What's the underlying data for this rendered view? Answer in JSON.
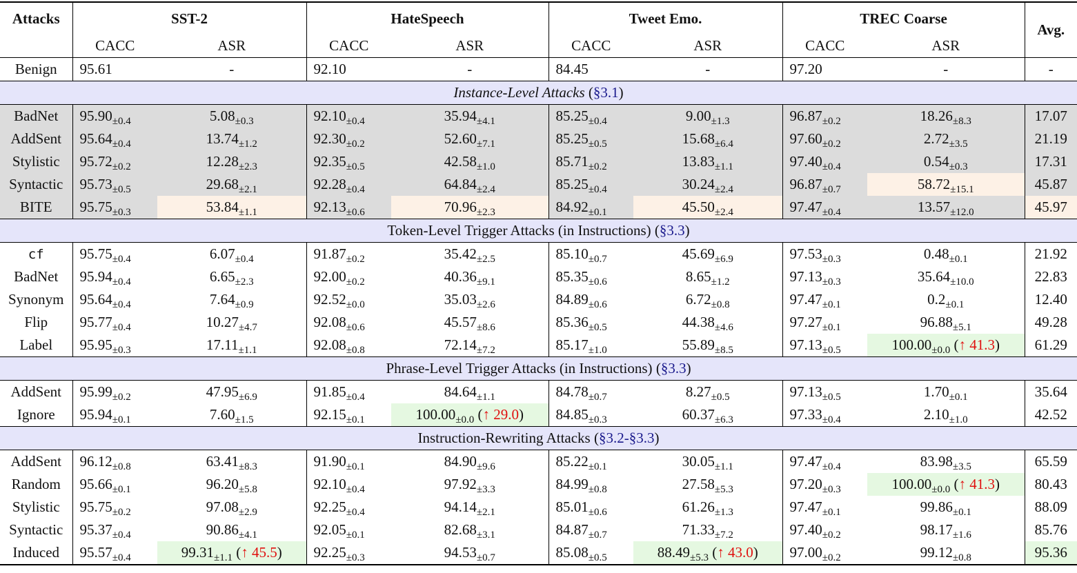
{
  "header": {
    "attacks": "Attacks",
    "datasets": [
      "SST-2",
      "HateSpeech",
      "Tweet Emo.",
      "TREC Coarse"
    ],
    "avg": "Avg.",
    "cacc": "CACC",
    "asr": "ASR"
  },
  "benign": {
    "label": "Benign",
    "cells": [
      "95.61",
      "-",
      "92.10",
      "-",
      "84.45",
      "-",
      "97.20",
      "-"
    ],
    "avg": "-"
  },
  "colors": {
    "gray": "#dcdcdc",
    "orange": "#fdf1e6",
    "green": "#e5f8e1",
    "section": "#e5e5fa",
    "delta": "#e0100f",
    "ref": "#1a1a8c"
  },
  "sections": [
    {
      "title": "Instance-Level Attacks",
      "italic": true,
      "ref_open": "(",
      "ref": "§3.1",
      "ref_close": ")",
      "shaded": true,
      "rows": [
        {
          "label": "BadNet",
          "cells": [
            [
              "95.90",
              "0.4"
            ],
            [
              "5.08",
              "0.3"
            ],
            [
              "92.10",
              "0.4"
            ],
            [
              "35.94",
              "4.1"
            ],
            [
              "85.25",
              "0.4"
            ],
            [
              "9.00",
              "1.3"
            ],
            [
              "96.87",
              "0.2"
            ],
            [
              "18.26",
              "8.3"
            ]
          ],
          "avg": "17.07"
        },
        {
          "label": "AddSent",
          "cells": [
            [
              "95.64",
              "0.4"
            ],
            [
              "13.74",
              "1.2"
            ],
            [
              "92.30",
              "0.2"
            ],
            [
              "52.60",
              "7.1"
            ],
            [
              "85.25",
              "0.5"
            ],
            [
              "15.68",
              "6.4"
            ],
            [
              "97.60",
              "0.2"
            ],
            [
              "2.72",
              "3.5"
            ]
          ],
          "avg": "21.19"
        },
        {
          "label": "Stylistic",
          "cells": [
            [
              "95.72",
              "0.2"
            ],
            [
              "12.28",
              "2.3"
            ],
            [
              "92.35",
              "0.5"
            ],
            [
              "42.58",
              "1.0"
            ],
            [
              "85.71",
              "0.2"
            ],
            [
              "13.83",
              "1.1"
            ],
            [
              "97.40",
              "0.4"
            ],
            [
              "0.54",
              "0.3"
            ]
          ],
          "avg": "17.31"
        },
        {
          "label": "Syntactic",
          "cells": [
            [
              "95.73",
              "0.5"
            ],
            [
              "29.68",
              "2.1"
            ],
            [
              "92.28",
              "0.4"
            ],
            [
              "64.84",
              "2.4"
            ],
            [
              "85.25",
              "0.4"
            ],
            [
              "30.24",
              "2.4"
            ],
            [
              "96.87",
              "0.7"
            ],
            [
              "58.72",
              "15.1",
              "orange"
            ]
          ],
          "avg": "45.87"
        },
        {
          "label": "BITE",
          "cells": [
            [
              "95.75",
              "0.3"
            ],
            [
              "53.84",
              "1.1",
              "orange"
            ],
            [
              "92.13",
              "0.6"
            ],
            [
              "70.96",
              "2.3",
              "orange"
            ],
            [
              "84.92",
              "0.1"
            ],
            [
              "45.50",
              "2.4",
              "orange"
            ],
            [
              "97.47",
              "0.4"
            ],
            [
              "13.57",
              "12.0"
            ]
          ],
          "avg": "45.97",
          "avg_hl": "orange"
        }
      ]
    },
    {
      "title": "Token-Level Trigger Attacks (in Instructions)",
      "italic": false,
      "ref_open": "(",
      "ref": "§3.3",
      "ref_close": ")",
      "shaded": false,
      "rows": [
        {
          "label": "cf",
          "mono": true,
          "cells": [
            [
              "95.75",
              "0.4"
            ],
            [
              "6.07",
              "0.4"
            ],
            [
              "91.87",
              "0.2"
            ],
            [
              "35.42",
              "2.5"
            ],
            [
              "85.10",
              "0.7"
            ],
            [
              "45.69",
              "6.9"
            ],
            [
              "97.53",
              "0.3"
            ],
            [
              "0.48",
              "0.1"
            ]
          ],
          "avg": "21.92"
        },
        {
          "label": "BadNet",
          "cells": [
            [
              "95.94",
              "0.4"
            ],
            [
              "6.65",
              "2.3"
            ],
            [
              "92.00",
              "0.2"
            ],
            [
              "40.36",
              "9.1"
            ],
            [
              "85.35",
              "0.6"
            ],
            [
              "8.65",
              "1.2"
            ],
            [
              "97.13",
              "0.3"
            ],
            [
              "35.64",
              "10.0"
            ]
          ],
          "avg": "22.83"
        },
        {
          "label": "Synonym",
          "cells": [
            [
              "95.64",
              "0.4"
            ],
            [
              "7.64",
              "0.9"
            ],
            [
              "92.52",
              "0.0"
            ],
            [
              "35.03",
              "2.6"
            ],
            [
              "84.89",
              "0.6"
            ],
            [
              "6.72",
              "0.8"
            ],
            [
              "97.47",
              "0.1"
            ],
            [
              "0.2",
              "0.1"
            ]
          ],
          "avg": "12.40"
        },
        {
          "label": "Flip",
          "cells": [
            [
              "95.77",
              "0.4"
            ],
            [
              "10.27",
              "4.7"
            ],
            [
              "92.08",
              "0.6"
            ],
            [
              "45.57",
              "8.6"
            ],
            [
              "85.36",
              "0.5"
            ],
            [
              "44.38",
              "4.6"
            ],
            [
              "97.27",
              "0.1"
            ],
            [
              "96.88",
              "5.1"
            ]
          ],
          "avg": "49.28"
        },
        {
          "label": "Label",
          "cells": [
            [
              "95.95",
              "0.3"
            ],
            [
              "17.11",
              "1.1"
            ],
            [
              "92.08",
              "0.8"
            ],
            [
              "72.14",
              "7.2"
            ],
            [
              "85.17",
              "1.0"
            ],
            [
              "55.89",
              "8.5"
            ],
            [
              "97.13",
              "0.5"
            ],
            [
              "100.00",
              "0.0",
              "green",
              "↑ 41.3"
            ]
          ],
          "avg": "61.29"
        }
      ]
    },
    {
      "title": "Phrase-Level Trigger Attacks (in Instructions)",
      "italic": false,
      "ref_open": "(",
      "ref": "§3.3",
      "ref_close": ")",
      "shaded": false,
      "rows": [
        {
          "label": "AddSent",
          "cells": [
            [
              "95.99",
              "0.2"
            ],
            [
              "47.95",
              "6.9"
            ],
            [
              "91.85",
              "0.4"
            ],
            [
              "84.64",
              "1.1"
            ],
            [
              "84.78",
              "0.7"
            ],
            [
              "8.27",
              "0.5"
            ],
            [
              "97.13",
              "0.5"
            ],
            [
              "1.70",
              "0.1"
            ]
          ],
          "avg": "35.64"
        },
        {
          "label": "Ignore",
          "cells": [
            [
              "95.94",
              "0.1"
            ],
            [
              "7.60",
              "1.5"
            ],
            [
              "92.15",
              "0.1"
            ],
            [
              "100.00",
              "0.0",
              "green",
              "↑ 29.0"
            ],
            [
              "84.85",
              "0.3"
            ],
            [
              "60.37",
              "6.3"
            ],
            [
              "97.33",
              "0.4"
            ],
            [
              "2.10",
              "1.0"
            ]
          ],
          "avg": "42.52"
        }
      ]
    },
    {
      "title": "Instruction-Rewriting Attacks",
      "italic": false,
      "ref_open": "(",
      "ref": "§3.2-§3.3",
      "ref_close": ")",
      "shaded": false,
      "rows": [
        {
          "label": "AddSent",
          "cells": [
            [
              "96.12",
              "0.8"
            ],
            [
              "63.41",
              "8.3"
            ],
            [
              "91.90",
              "0.1"
            ],
            [
              "84.90",
              "9.6"
            ],
            [
              "85.22",
              "0.1"
            ],
            [
              "30.05",
              "1.1"
            ],
            [
              "97.47",
              "0.4"
            ],
            [
              "83.98",
              "3.5"
            ]
          ],
          "avg": "65.59"
        },
        {
          "label": "Random",
          "cells": [
            [
              "95.66",
              "0.1"
            ],
            [
              "96.20",
              "5.8"
            ],
            [
              "92.10",
              "0.4"
            ],
            [
              "97.92",
              "3.3"
            ],
            [
              "84.99",
              "0.8"
            ],
            [
              "27.58",
              "5.3"
            ],
            [
              "97.20",
              "0.3"
            ],
            [
              "100.00",
              "0.0",
              "green",
              "↑ 41.3"
            ]
          ],
          "avg": "80.43"
        },
        {
          "label": "Stylistic",
          "cells": [
            [
              "95.75",
              "0.2"
            ],
            [
              "97.08",
              "2.9"
            ],
            [
              "92.25",
              "0.4"
            ],
            [
              "94.14",
              "2.1"
            ],
            [
              "85.01",
              "0.6"
            ],
            [
              "61.26",
              "1.3"
            ],
            [
              "97.47",
              "0.1"
            ],
            [
              "99.86",
              "0.1"
            ]
          ],
          "avg": "88.09"
        },
        {
          "label": "Syntactic",
          "cells": [
            [
              "95.37",
              "0.4"
            ],
            [
              "90.86",
              "4.1"
            ],
            [
              "92.05",
              "0.1"
            ],
            [
              "82.68",
              "3.1"
            ],
            [
              "84.87",
              "0.7"
            ],
            [
              "71.33",
              "7.2"
            ],
            [
              "97.40",
              "0.2"
            ],
            [
              "98.17",
              "1.6"
            ]
          ],
          "avg": "85.76"
        },
        {
          "label": "Induced",
          "cells": [
            [
              "95.57",
              "0.4"
            ],
            [
              "99.31",
              "1.1",
              "green",
              "↑ 45.5"
            ],
            [
              "92.25",
              "0.3"
            ],
            [
              "94.53",
              "0.7"
            ],
            [
              "85.08",
              "0.5"
            ],
            [
              "88.49",
              "5.3",
              "green",
              "↑ 43.0"
            ],
            [
              "97.00",
              "0.2"
            ],
            [
              "99.12",
              "0.8"
            ]
          ],
          "avg": "95.36",
          "avg_hl": "green"
        }
      ]
    }
  ]
}
